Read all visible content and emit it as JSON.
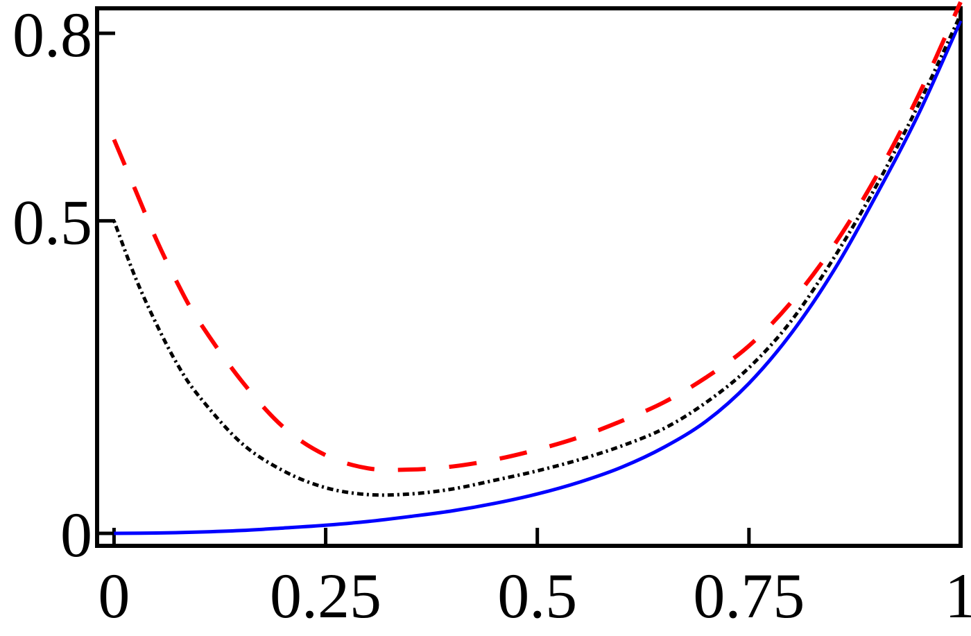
{
  "chart_data": {
    "type": "line",
    "title": "",
    "xlabel": "",
    "ylabel": "",
    "xlim": [
      -0.02,
      1.0
    ],
    "ylim": [
      -0.02,
      0.84
    ],
    "x_ticks": [
      0,
      0.25,
      0.5,
      0.75,
      1
    ],
    "x_tick_labels": [
      "0",
      "0.25",
      "0.5",
      "0.75",
      "1"
    ],
    "y_ticks": [
      0,
      0.5,
      0.8
    ],
    "y_tick_labels": [
      "0",
      "0.5",
      "0.8"
    ],
    "grid": false,
    "legend": "none",
    "series": [
      {
        "color": "#0000ff",
        "style": "solid",
        "x": [
          0,
          0.05,
          0.1,
          0.15,
          0.2,
          0.25,
          0.3,
          0.35,
          0.4,
          0.45,
          0.5,
          0.55,
          0.6,
          0.65,
          0.7,
          0.75,
          0.8,
          0.85,
          0.9,
          0.95,
          1.0
        ],
        "y": [
          0.0,
          0.0005,
          0.002,
          0.0045,
          0.0085,
          0.013,
          0.019,
          0.027,
          0.036,
          0.048,
          0.063,
          0.082,
          0.106,
          0.138,
          0.18,
          0.24,
          0.32,
          0.42,
          0.54,
          0.67,
          0.82
        ]
      },
      {
        "color": "#000000",
        "style": "dash-dot",
        "x": [
          0,
          0.025,
          0.05,
          0.075,
          0.1,
          0.15,
          0.2,
          0.25,
          0.3,
          0.35,
          0.4,
          0.45,
          0.5,
          0.55,
          0.6,
          0.65,
          0.7,
          0.75,
          0.8,
          0.85,
          0.9,
          0.95,
          1.0
        ],
        "y": [
          0.5,
          0.41,
          0.335,
          0.27,
          0.22,
          0.145,
          0.1,
          0.073,
          0.062,
          0.063,
          0.071,
          0.085,
          0.1,
          0.118,
          0.14,
          0.168,
          0.21,
          0.265,
          0.34,
          0.44,
          0.555,
          0.685,
          0.83
        ]
      },
      {
        "color": "#ff0000",
        "style": "dashed",
        "x": [
          0,
          0.025,
          0.05,
          0.075,
          0.1,
          0.15,
          0.2,
          0.25,
          0.3,
          0.35,
          0.4,
          0.45,
          0.5,
          0.55,
          0.6,
          0.65,
          0.7,
          0.75,
          0.8,
          0.85,
          0.9,
          0.95,
          1.0
        ],
        "y": [
          0.63,
          0.55,
          0.47,
          0.4,
          0.34,
          0.245,
          0.17,
          0.125,
          0.104,
          0.102,
          0.107,
          0.118,
          0.134,
          0.154,
          0.18,
          0.21,
          0.25,
          0.3,
          0.37,
          0.46,
          0.57,
          0.7,
          0.85
        ]
      }
    ]
  }
}
